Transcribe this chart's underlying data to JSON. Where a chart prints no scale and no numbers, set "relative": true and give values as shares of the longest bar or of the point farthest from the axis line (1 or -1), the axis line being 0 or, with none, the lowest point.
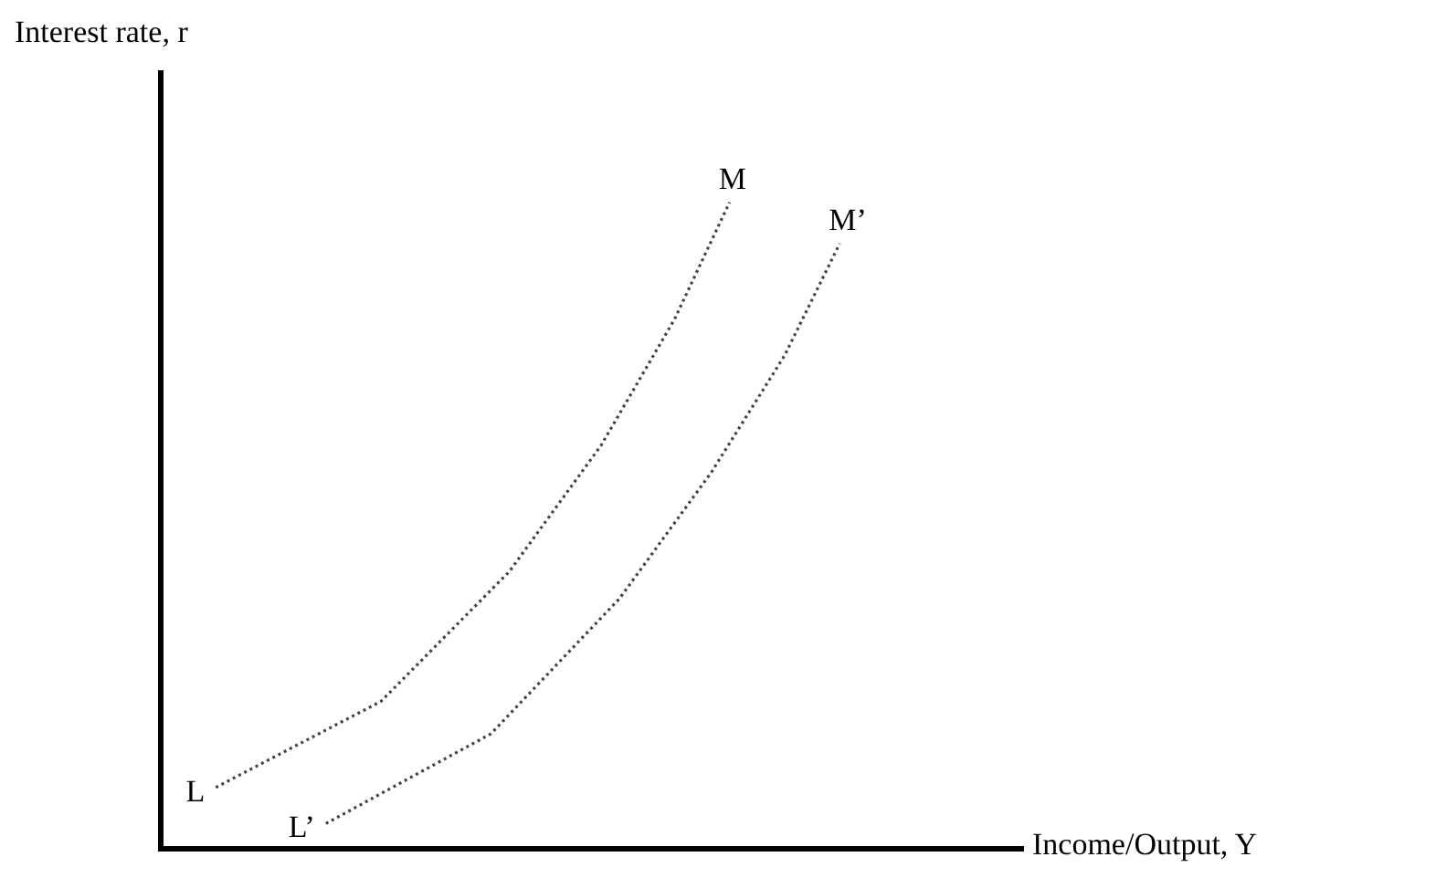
{
  "chart_data": {
    "type": "line",
    "relative": true,
    "xlabel": "Income/Output, Y",
    "ylabel": "Interest rate, r",
    "tick_labels": false,
    "grid": false,
    "legend": false,
    "marker": "none",
    "line_style": "dotted",
    "categories": [
      null,
      null,
      null,
      null,
      null,
      null,
      null,
      null,
      null,
      null,
      null,
      null,
      null,
      null,
      null,
      null,
      null,
      null,
      null,
      null,
      null,
      null,
      null,
      null,
      null,
      null,
      null,
      null,
      null,
      null,
      null,
      null,
      null,
      null,
      null,
      null,
      null,
      null,
      null,
      null,
      null,
      null,
      null,
      null,
      null,
      null,
      null,
      null
    ],
    "series": [
      {
        "color": "#444444",
        "values": [
          null,
          null,
          null,
          0.095,
          null,
          null,
          null,
          null,
          null,
          null,
          null,
          null,
          0.228,
          null,
          null,
          null,
          null,
          null,
          null,
          0.429,
          null,
          null,
          null,
          null,
          0.624,
          null,
          null,
          null,
          0.819,
          null,
          null,
          1,
          null,
          null,
          null,
          null,
          null,
          null,
          null,
          null,
          null,
          null,
          null,
          null,
          null,
          null,
          null,
          null
        ]
      },
      {
        "color": "#444444",
        "values": [
          null,
          null,
          null,
          null,
          null,
          null,
          null,
          null,
          null,
          0.039,
          null,
          null,
          null,
          null,
          null,
          null,
          null,
          null,
          0.178,
          null,
          null,
          null,
          null,
          null,
          null,
          0.387,
          null,
          null,
          null,
          null,
          0.582,
          null,
          null,
          null,
          0.763,
          null,
          null,
          0.936,
          null,
          null,
          null,
          null,
          null,
          null,
          null,
          null,
          null,
          null
        ]
      }
    ],
    "annotations": [
      "L",
      "M",
      "L’",
      "M’"
    ]
  }
}
